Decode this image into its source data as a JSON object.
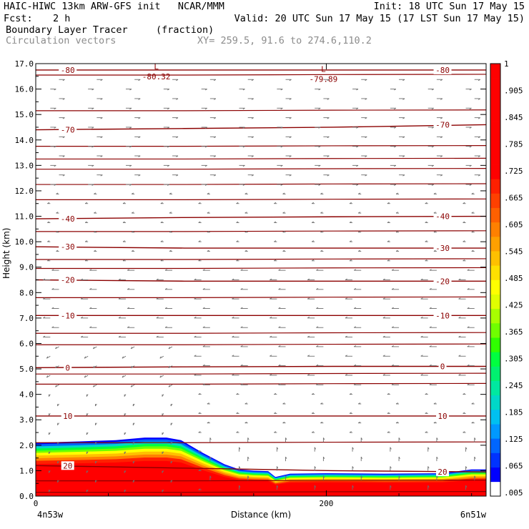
{
  "header": {
    "title_left": "HAIC-HIWC 13km ARW-GFS init   NCAR/MMM",
    "init": "Init: 18 UTC Sun 17 May 15",
    "fcst_label": "Fcst:",
    "fcst_value": "2 h",
    "valid": "Valid: 20 UTC Sun 17 May 15 (17 LST Sun 17 May 15)",
    "field_name": "Boundary Layer Tracer",
    "field_units": "(fraction)",
    "vectors_label": "Circulation vectors",
    "xy_label": "XY= 259.5, 91.6 to 274.6,110.2"
  },
  "chart_data": {
    "type": "heatmap",
    "ylabel": "Height (km)",
    "xlabel": "Distance (km)",
    "x_left_label": "4n53w",
    "x_right_label": "6n51w",
    "xlim": [
      0,
      310
    ],
    "ylim": [
      0,
      17
    ],
    "x_ticks": [
      0,
      200
    ],
    "y_ticks": [
      0.0,
      1.0,
      2.0,
      3.0,
      4.0,
      5.0,
      6.0,
      7.0,
      8.0,
      9.0,
      10.0,
      11.0,
      12.0,
      13.0,
      14.0,
      15.0,
      16.0,
      17.0
    ],
    "tracer_top_km": [
      [
        0,
        2.1
      ],
      [
        30,
        2.15
      ],
      [
        55,
        2.2
      ],
      [
        75,
        2.3
      ],
      [
        90,
        2.3
      ],
      [
        100,
        2.2
      ],
      [
        115,
        1.7
      ],
      [
        130,
        1.25
      ],
      [
        140,
        1.05
      ],
      [
        150,
        1.0
      ],
      [
        160,
        0.98
      ],
      [
        165,
        0.75
      ],
      [
        175,
        0.88
      ],
      [
        200,
        0.9
      ],
      [
        240,
        0.88
      ],
      [
        280,
        0.9
      ],
      [
        300,
        1.05
      ],
      [
        310,
        1.05
      ]
    ],
    "colorbar": {
      "labels": [
        ".005",
        ".065",
        ".125",
        ".185",
        ".245",
        ".305",
        ".365",
        ".425",
        ".485",
        ".545",
        ".605",
        ".665",
        ".725",
        ".785",
        ".845",
        ".905",
        "1"
      ],
      "colors": [
        "#ffffff",
        "#0000ff",
        "#0033ff",
        "#0066ff",
        "#0099ff",
        "#00c0f0",
        "#00d8c8",
        "#00e8a0",
        "#00f070",
        "#00ff40",
        "#30ff00",
        "#70ff00",
        "#a8ff00",
        "#e0ff00",
        "#ffff00",
        "#ffe000",
        "#ffc000",
        "#ffa000",
        "#ff8000",
        "#ff6000",
        "#ff4000",
        "#ff2000",
        "#ff0000",
        "#ff0000",
        "#ff0000",
        "#ff0000",
        "#ff0000",
        "#ff0000",
        "#ff0000",
        "#ff0000"
      ]
    },
    "temperature_contours": {
      "color": "#8b0000",
      "lines": [
        {
          "label": "-80",
          "heights_km": [
            16.75,
            16.75,
            16.75,
            16.75
          ]
        },
        {
          "label": "-70",
          "heights_km": [
            14.4,
            14.45,
            14.5,
            14.6
          ]
        },
        {
          "label": "-40",
          "heights_km": [
            10.9,
            10.95,
            10.98,
            11.0
          ]
        },
        {
          "label": "-30",
          "heights_km": [
            9.8,
            9.75,
            9.75,
            9.75
          ]
        },
        {
          "label": "-20",
          "heights_km": [
            8.5,
            8.45,
            8.45,
            8.45
          ]
        },
        {
          "label": "-10",
          "heights_km": [
            7.1,
            7.1,
            7.1,
            7.1
          ]
        },
        {
          "label": "0",
          "heights_km": [
            5.05,
            5.08,
            5.1,
            5.1
          ]
        },
        {
          "label": "10",
          "heights_km": [
            3.15,
            3.15,
            3.15,
            3.15
          ]
        },
        {
          "label": "20",
          "heights_km": [
            1.2,
            1.1,
            1.0,
            0.95
          ]
        }
      ],
      "unlabeled_heights_km": [
        16.55,
        15.15,
        13.75,
        13.25,
        12.85,
        12.25,
        11.65,
        10.4,
        9.3,
        8.95,
        7.8,
        6.4,
        5.95,
        4.8,
        4.4,
        2.1,
        0.6,
        0.15
      ],
      "minima": [
        {
          "letter": "L",
          "value": "-80.32",
          "x_km": 83,
          "y_km": 16.55
        },
        {
          "letter": "L",
          "value": "-79.89",
          "x_km": 198,
          "y_km": 16.45
        }
      ]
    },
    "circulation_vectors": {
      "description": "wind vectors",
      "color": "#6e6e6e"
    }
  }
}
